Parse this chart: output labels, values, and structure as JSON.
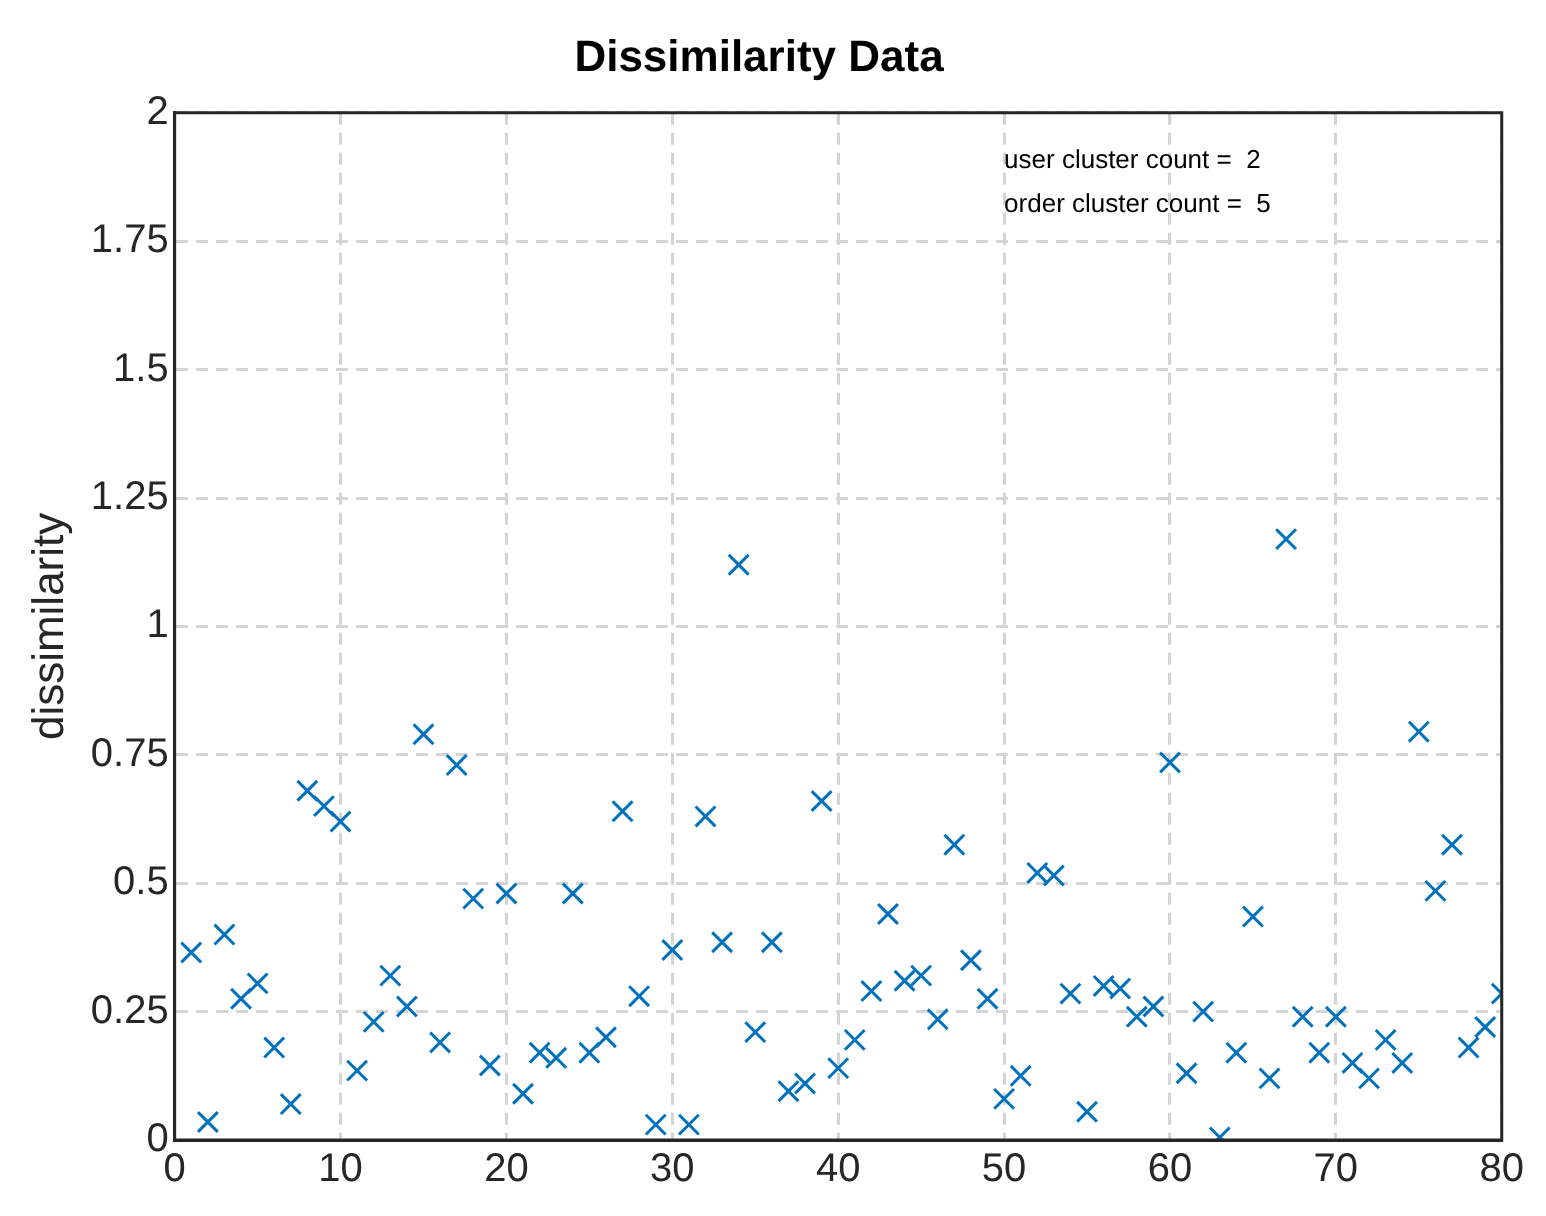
{
  "chart_data": {
    "type": "scatter",
    "title": "Dissimilarity Data",
    "ylabel": "dissimilarity",
    "x": [
      1,
      2,
      3,
      4,
      5,
      6,
      7,
      8,
      9,
      10,
      11,
      12,
      13,
      14,
      15,
      16,
      17,
      18,
      19,
      20,
      21,
      22,
      23,
      24,
      25,
      26,
      27,
      28,
      29,
      30,
      31,
      32,
      33,
      34,
      35,
      36,
      37,
      38,
      39,
      40,
      41,
      42,
      43,
      44,
      45,
      46,
      47,
      48,
      49,
      50,
      51,
      52,
      53,
      54,
      55,
      56,
      57,
      58,
      59,
      60,
      61,
      62,
      63,
      64,
      65,
      66,
      67,
      68,
      69,
      70,
      71,
      72,
      73,
      74,
      75,
      76,
      77,
      78,
      79,
      80
    ],
    "series": [
      {
        "color": "#0072bd",
        "values": [
          0.365,
          0.035,
          0.4,
          0.275,
          0.305,
          0.18,
          0.07,
          0.68,
          0.65,
          0.62,
          0.135,
          0.23,
          0.32,
          0.26,
          0.79,
          0.19,
          0.73,
          0.47,
          0.145,
          0.48,
          0.09,
          0.17,
          0.16,
          0.48,
          0.17,
          0.2,
          0.64,
          0.28,
          0.03,
          0.37,
          0.03,
          0.63,
          0.385,
          1.12,
          0.21,
          0.385,
          0.095,
          0.11,
          0.66,
          0.14,
          0.195,
          0.29,
          0.44,
          0.31,
          0.32,
          0.235,
          0.575,
          0.35,
          0.275,
          0.08,
          0.125,
          0.52,
          0.515,
          0.285,
          0.055,
          0.3,
          0.295,
          0.24,
          0.26,
          0.735,
          0.13,
          0.25,
          0.005,
          0.17,
          0.435,
          0.12,
          1.17,
          0.24,
          0.17,
          0.24,
          0.15,
          0.12,
          0.195,
          0.15,
          0.795,
          0.485,
          0.575,
          0.18,
          0.22,
          0.285
        ]
      }
    ],
    "annotations": [
      "user cluster count =  2",
      "order cluster count =  5"
    ],
    "xlim": [
      0,
      80
    ],
    "xticks": [
      0,
      10,
      20,
      30,
      40,
      50,
      60,
      70,
      80
    ],
    "ylim": [
      0,
      2
    ],
    "yticks": [
      0,
      0.25,
      0.5,
      0.75,
      1,
      1.25,
      1.5,
      1.75,
      2
    ],
    "grid": true,
    "legend": false,
    "marker": "cross"
  }
}
